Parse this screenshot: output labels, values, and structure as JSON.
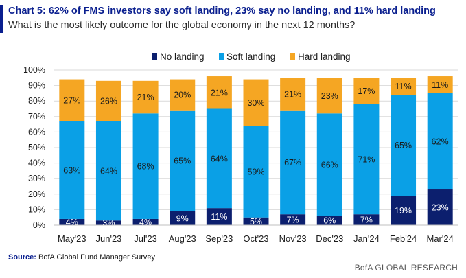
{
  "header": {
    "title": "Chart 5: 62% of FMS investors say soft landing, 23% say no landing, and 11% hard landing",
    "subtitle": "What is the most likely outcome for the global economy in the next 12 months?"
  },
  "source": {
    "label": "Source:",
    "text": "BofA Global Fund Manager Survey"
  },
  "footer": {
    "brand": "BofA GLOBAL RESEARCH"
  },
  "colors": {
    "accent": "#0a1f8f",
    "no_landing": "#0c1f6e",
    "soft_landing": "#0aa0e6",
    "hard_landing": "#f5a623",
    "grid": "#d9d9d9"
  },
  "chart_data": {
    "type": "bar",
    "stacked": true,
    "categories": [
      "May'23",
      "Jun'23",
      "Jul'23",
      "Aug'23",
      "Sep'23",
      "Oct'23",
      "Nov'23",
      "Dec'23",
      "Jan'24",
      "Feb'24",
      "Mar'24"
    ],
    "series": [
      {
        "name": "No landing",
        "color": "#0c1f6e",
        "values": [
          4,
          3,
          4,
          9,
          11,
          5,
          7,
          6,
          7,
          19,
          23
        ]
      },
      {
        "name": "Soft landing",
        "color": "#0aa0e6",
        "values": [
          63,
          64,
          68,
          65,
          64,
          59,
          67,
          66,
          71,
          65,
          62
        ]
      },
      {
        "name": "Hard landing",
        "color": "#f5a623",
        "values": [
          27,
          26,
          21,
          20,
          21,
          30,
          21,
          23,
          17,
          11,
          11
        ]
      }
    ],
    "ylim": [
      0,
      100
    ],
    "yticks": [
      "0%",
      "10%",
      "20%",
      "30%",
      "40%",
      "50%",
      "60%",
      "70%",
      "80%",
      "90%",
      "100%"
    ],
    "data_labels": true,
    "legend_position": "top-center",
    "grid": true
  }
}
